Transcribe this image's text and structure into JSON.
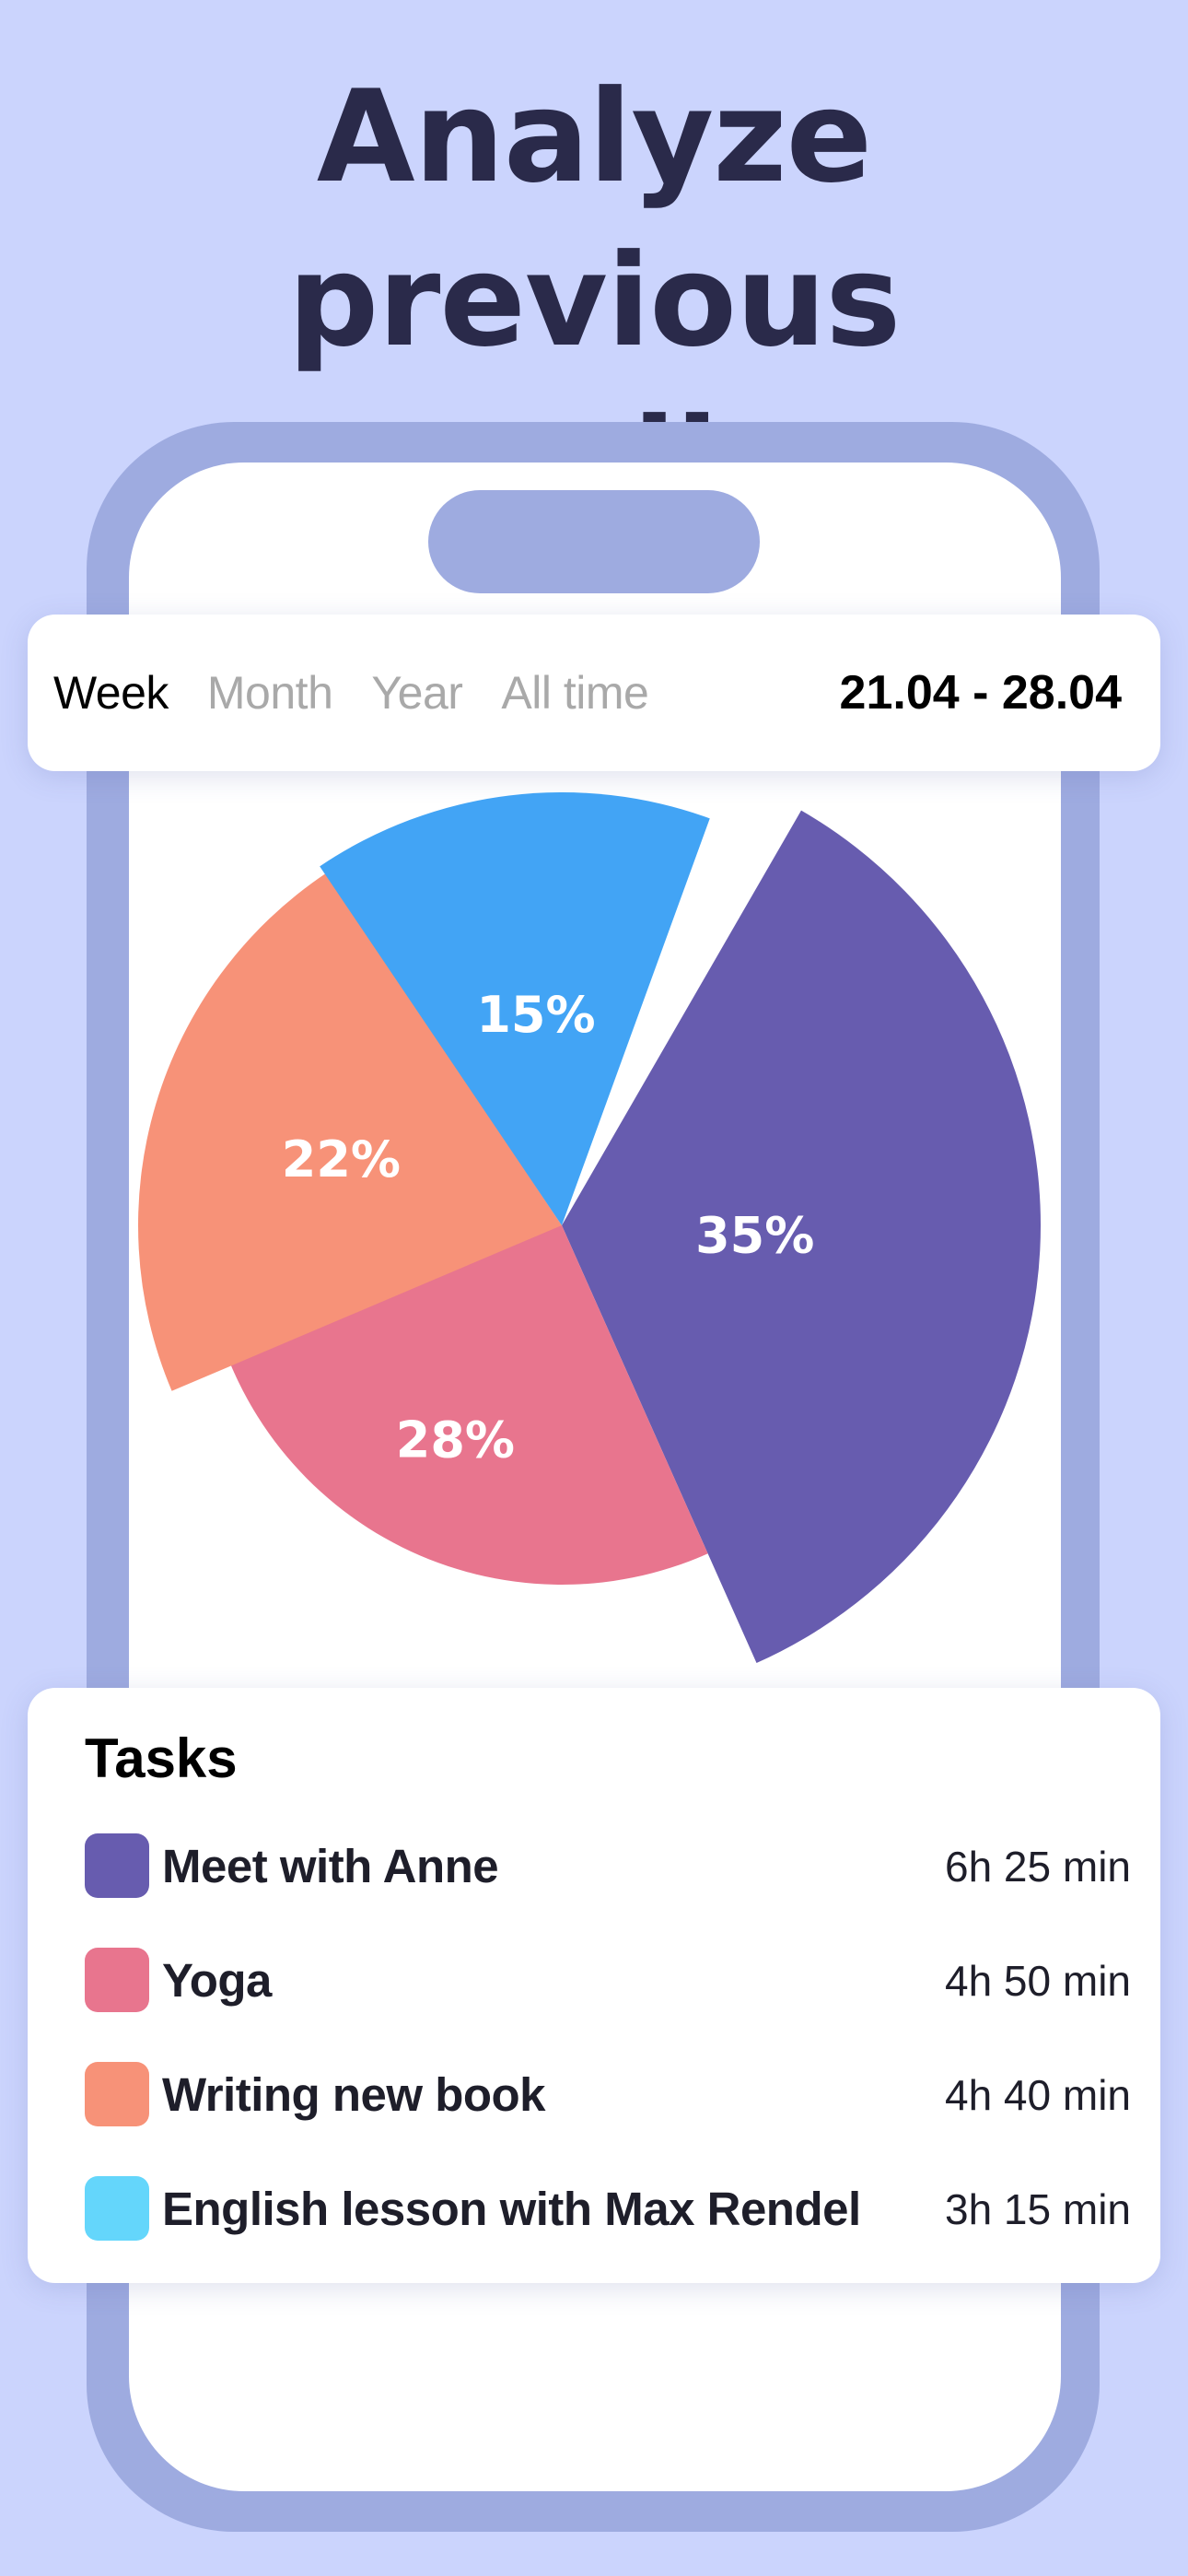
{
  "headline": {
    "line1": "Analyze previous",
    "line2": "recordings"
  },
  "period": {
    "tabs": [
      {
        "label": "Week",
        "active": true
      },
      {
        "label": "Month",
        "active": false
      },
      {
        "label": "Year",
        "active": false
      },
      {
        "label": "All time",
        "active": false
      }
    ],
    "date_range": "21.04 - 28.04"
  },
  "chart_data": {
    "type": "pie",
    "slices": [
      {
        "label": "35%",
        "value": 35,
        "color": "#675caf",
        "task": "Meet with Anne"
      },
      {
        "label": "28%",
        "value": 28,
        "color": "#e8758e",
        "task": "Yoga"
      },
      {
        "label": "22%",
        "value": 22,
        "color": "#f79278",
        "task": "Writing new book"
      },
      {
        "label": "15%",
        "value": 15,
        "color": "#42a4f5",
        "task": "English lesson with Max Rendel"
      }
    ]
  },
  "tasks": {
    "title": "Tasks",
    "items": [
      {
        "name": "Meet with Anne",
        "duration": "6h 25 min",
        "color": "#675caf"
      },
      {
        "name": "Yoga",
        "duration": "4h 50 min",
        "color": "#e8758e"
      },
      {
        "name": "Writing new book",
        "duration": "4h 40 min",
        "color": "#f79278"
      },
      {
        "name": "English lesson with Max Rendel",
        "duration": "3h 15 min",
        "color": "#64d6fb"
      }
    ]
  },
  "colors": {
    "background": "#cbd4fd",
    "phone_frame": "#9eabe0",
    "headline": "#2a2a4a"
  }
}
